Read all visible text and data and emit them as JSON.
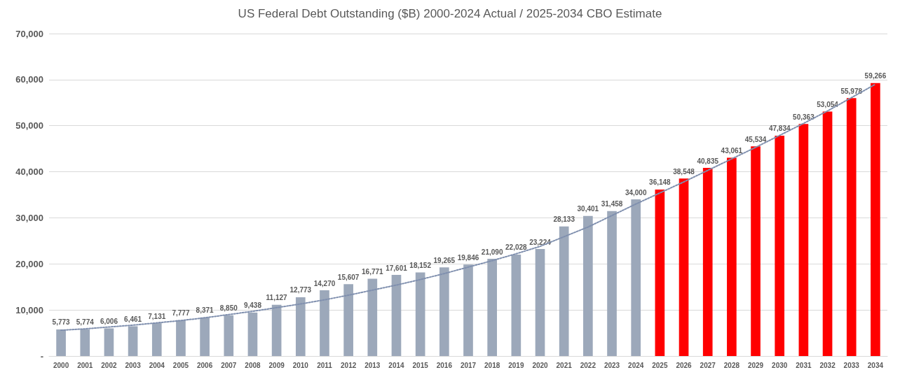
{
  "chart_data": {
    "type": "bar",
    "title": "US Federal Debt Outstanding ($B) 2000-2024 Actual / 2025-2034 CBO Estimate",
    "categories": [
      "2000",
      "2001",
      "2002",
      "2003",
      "2004",
      "2005",
      "2006",
      "2007",
      "2008",
      "2009",
      "2010",
      "2011",
      "2012",
      "2013",
      "2014",
      "2015",
      "2016",
      "2017",
      "2018",
      "2019",
      "2020",
      "2021",
      "2022",
      "2023",
      "2024",
      "2025",
      "2026",
      "2027",
      "2028",
      "2029",
      "2030",
      "2031",
      "2032",
      "2033",
      "2034"
    ],
    "series": [
      {
        "values": [
          5773,
          5774,
          6006,
          6461,
          7131,
          7777,
          8371,
          8850,
          9438,
          11127,
          12773,
          14270,
          15607,
          16771,
          17601,
          18152,
          19265,
          19846,
          21090,
          22028,
          23224,
          28133,
          30401,
          31458,
          34000,
          36148,
          38548,
          40835,
          43061,
          45534,
          47834,
          50363,
          53054,
          55978,
          59266
        ],
        "value_labels": [
          "5,773",
          "5,774",
          "6,006",
          "6,461",
          "7,131",
          "7,777",
          "8,371",
          "8,850",
          "9,438",
          "11,127",
          "12,773",
          "14,270",
          "15,607",
          "16,771",
          "17,601",
          "18,152",
          "19,265",
          "19,846",
          "21,090",
          "22,028",
          "23,224",
          "28,133",
          "30,401",
          "31,458",
          "34,000",
          "36,148",
          "38,548",
          "40,835",
          "43,061",
          "45,534",
          "47,834",
          "50,363",
          "53,054",
          "55,978",
          "59,266"
        ],
        "colors": [
          "#9ca8ba",
          "#9ca8ba",
          "#9ca8ba",
          "#9ca8ba",
          "#9ca8ba",
          "#9ca8ba",
          "#9ca8ba",
          "#9ca8ba",
          "#9ca8ba",
          "#9ca8ba",
          "#9ca8ba",
          "#9ca8ba",
          "#9ca8ba",
          "#9ca8ba",
          "#9ca8ba",
          "#9ca8ba",
          "#9ca8ba",
          "#9ca8ba",
          "#9ca8ba",
          "#9ca8ba",
          "#9ca8ba",
          "#9ca8ba",
          "#9ca8ba",
          "#9ca8ba",
          "#9ca8ba",
          "#ff0000",
          "#ff0000",
          "#ff0000",
          "#ff0000",
          "#ff0000",
          "#ff0000",
          "#ff0000",
          "#ff0000",
          "#ff0000",
          "#ff0000"
        ]
      },
      {
        "type": "line",
        "color": "#7f8fae",
        "line_style": "dotted",
        "marker": "none",
        "values": [
          5600,
          5900,
          6300,
          6700,
          7200,
          7700,
          8300,
          9000,
          9700,
          10500,
          11300,
          12200,
          13200,
          14300,
          15400,
          16600,
          17900,
          19300,
          20700,
          22200,
          23800,
          25900,
          28000,
          30500,
          33000,
          35400,
          37800,
          40300,
          42800,
          45300,
          47900,
          50500,
          53200,
          56100,
          59000
        ]
      }
    ],
    "ylim": [
      0,
      70000
    ],
    "yticks": [
      {
        "value": 0,
        "label": "-"
      },
      {
        "value": 10000,
        "label": "10,000"
      },
      {
        "value": 20000,
        "label": "20,000"
      },
      {
        "value": 30000,
        "label": "30,000"
      },
      {
        "value": 40000,
        "label": "40,000"
      },
      {
        "value": 50000,
        "label": "50,000"
      },
      {
        "value": 60000,
        "label": "60,000"
      },
      {
        "value": 70000,
        "label": "70,000"
      }
    ],
    "grid": "y"
  }
}
